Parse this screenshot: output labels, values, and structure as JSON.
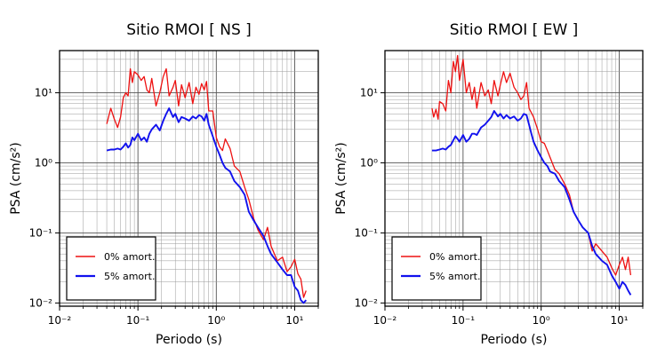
{
  "chart_data": [
    {
      "type": "line",
      "title": "Sitio RMOI [ NS ]",
      "xlabel": "Periodo (s)",
      "ylabel": "PSA (cm/s²)",
      "xscale": "log",
      "yscale": "log",
      "xlim": [
        0.01,
        20
      ],
      "ylim": [
        0.009,
        40
      ],
      "grid": true,
      "legend_position": "bottom-left",
      "x_ticks": [
        "10⁻²",
        "10⁻¹",
        "10⁰",
        "10¹"
      ],
      "y_ticks": [
        "10⁻²",
        "10⁻¹",
        "10⁰",
        "10¹"
      ],
      "series": [
        {
          "name": "0% amort.",
          "color": "#ee1111",
          "x": [
            0.04,
            0.045,
            0.05,
            0.055,
            0.06,
            0.065,
            0.07,
            0.075,
            0.08,
            0.085,
            0.09,
            0.1,
            0.11,
            0.12,
            0.13,
            0.14,
            0.15,
            0.17,
            0.19,
            0.21,
            0.23,
            0.25,
            0.28,
            0.3,
            0.33,
            0.36,
            0.4,
            0.45,
            0.5,
            0.55,
            0.6,
            0.65,
            0.7,
            0.75,
            0.8,
            0.9,
            1.0,
            1.1,
            1.2,
            1.3,
            1.5,
            1.7,
            2.0,
            2.3,
            2.6,
            3.0,
            3.4,
            4.0,
            4.5,
            5.0,
            6.0,
            7.0,
            8.0,
            9.0,
            10.0,
            11.0,
            12.0,
            13.0,
            14.0
          ],
          "y": [
            3.6,
            6.0,
            4.2,
            3.2,
            4.5,
            8.5,
            10.0,
            9.0,
            22.0,
            14.0,
            20.0,
            18.0,
            15.0,
            17.0,
            11.0,
            10.0,
            16.0,
            6.5,
            10.0,
            17.0,
            22.0,
            9.0,
            12.0,
            15.0,
            6.5,
            13.0,
            8.5,
            14.0,
            7.0,
            12.0,
            9.5,
            13.5,
            11.0,
            14.5,
            5.5,
            5.5,
            2.3,
            1.7,
            1.5,
            2.2,
            1.6,
            0.9,
            0.75,
            0.45,
            0.3,
            0.16,
            0.11,
            0.08,
            0.12,
            0.065,
            0.04,
            0.045,
            0.028,
            0.033,
            0.042,
            0.026,
            0.022,
            0.012,
            0.015
          ]
        },
        {
          "name": "5% amort.",
          "color": "#1111ee",
          "x": [
            0.04,
            0.045,
            0.05,
            0.055,
            0.06,
            0.065,
            0.07,
            0.075,
            0.08,
            0.085,
            0.09,
            0.1,
            0.11,
            0.12,
            0.13,
            0.14,
            0.15,
            0.17,
            0.19,
            0.21,
            0.23,
            0.25,
            0.28,
            0.3,
            0.33,
            0.36,
            0.4,
            0.45,
            0.5,
            0.55,
            0.6,
            0.65,
            0.7,
            0.75,
            0.8,
            0.9,
            1.0,
            1.1,
            1.2,
            1.3,
            1.5,
            1.7,
            2.0,
            2.3,
            2.6,
            3.0,
            3.4,
            4.0,
            4.5,
            5.0,
            6.0,
            7.0,
            8.0,
            9.0,
            10.0,
            11.0,
            12.0,
            13.0,
            14.0
          ],
          "y": [
            1.5,
            1.55,
            1.55,
            1.6,
            1.55,
            1.7,
            1.9,
            1.65,
            1.8,
            2.3,
            2.1,
            2.6,
            2.1,
            2.3,
            2.0,
            2.6,
            3.0,
            3.5,
            2.9,
            4.0,
            5.0,
            6.0,
            4.5,
            5.0,
            3.8,
            4.5,
            4.3,
            4.0,
            4.6,
            4.3,
            4.8,
            4.6,
            4.0,
            5.0,
            3.5,
            2.4,
            1.7,
            1.3,
            1.0,
            0.85,
            0.75,
            0.55,
            0.45,
            0.35,
            0.2,
            0.15,
            0.12,
            0.09,
            0.065,
            0.05,
            0.038,
            0.03,
            0.025,
            0.025,
            0.017,
            0.015,
            0.011,
            0.01,
            0.011
          ]
        }
      ]
    },
    {
      "type": "line",
      "title": "Sitio RMOI [ EW ]",
      "xlabel": "Periodo (s)",
      "ylabel": "PSA (cm/s²)",
      "xscale": "log",
      "yscale": "log",
      "xlim": [
        0.01,
        20
      ],
      "ylim": [
        0.009,
        40
      ],
      "grid": true,
      "legend_position": "bottom-left",
      "x_ticks": [
        "10⁻²",
        "10⁻¹",
        "10⁰",
        "10¹"
      ],
      "y_ticks": [
        "10⁻²",
        "10⁻¹",
        "10⁰",
        "10¹"
      ],
      "series": [
        {
          "name": "0% amort.",
          "color": "#ee1111",
          "x": [
            0.04,
            0.042,
            0.045,
            0.048,
            0.05,
            0.055,
            0.06,
            0.065,
            0.07,
            0.075,
            0.08,
            0.085,
            0.09,
            0.1,
            0.11,
            0.12,
            0.13,
            0.14,
            0.15,
            0.17,
            0.19,
            0.21,
            0.23,
            0.25,
            0.28,
            0.3,
            0.33,
            0.36,
            0.4,
            0.45,
            0.5,
            0.55,
            0.6,
            0.65,
            0.7,
            0.8,
            0.9,
            1.0,
            1.1,
            1.2,
            1.3,
            1.5,
            1.7,
            2.0,
            2.3,
            2.6,
            3.0,
            3.4,
            4.0,
            4.5,
            5.0,
            6.0,
            7.0,
            8.0,
            9.0,
            10.0,
            11.0,
            12.0,
            13.0,
            14.0
          ],
          "y": [
            6.0,
            4.5,
            5.8,
            4.2,
            7.5,
            7.0,
            5.5,
            15.0,
            10.0,
            28.0,
            20.0,
            34.0,
            15.0,
            30.0,
            10.0,
            14.0,
            8.0,
            12.0,
            6.0,
            14.0,
            9.0,
            11.0,
            7.0,
            15.0,
            9.0,
            13.0,
            20.0,
            14.0,
            19.0,
            12.0,
            10.0,
            8.0,
            9.0,
            14.0,
            6.0,
            4.5,
            3.0,
            2.0,
            1.9,
            1.5,
            1.2,
            0.8,
            0.7,
            0.5,
            0.35,
            0.2,
            0.15,
            0.12,
            0.1,
            0.055,
            0.07,
            0.055,
            0.045,
            0.032,
            0.025,
            0.035,
            0.045,
            0.03,
            0.045,
            0.025
          ]
        },
        {
          "name": "5% amort.",
          "color": "#1111ee",
          "x": [
            0.04,
            0.045,
            0.05,
            0.055,
            0.06,
            0.065,
            0.07,
            0.075,
            0.08,
            0.085,
            0.09,
            0.1,
            0.11,
            0.12,
            0.13,
            0.14,
            0.15,
            0.17,
            0.19,
            0.21,
            0.23,
            0.25,
            0.28,
            0.3,
            0.33,
            0.36,
            0.4,
            0.45,
            0.5,
            0.55,
            0.6,
            0.65,
            0.7,
            0.75,
            0.8,
            0.9,
            1.0,
            1.1,
            1.2,
            1.3,
            1.5,
            1.7,
            2.0,
            2.3,
            2.6,
            3.0,
            3.4,
            4.0,
            4.5,
            5.0,
            6.0,
            7.0,
            8.0,
            9.0,
            10.0,
            11.0,
            12.0,
            13.0,
            14.0
          ],
          "y": [
            1.5,
            1.5,
            1.55,
            1.6,
            1.55,
            1.7,
            1.8,
            2.1,
            2.4,
            2.2,
            2.0,
            2.5,
            2.0,
            2.2,
            2.6,
            2.6,
            2.5,
            3.2,
            3.5,
            4.0,
            4.5,
            5.5,
            4.6,
            5.0,
            4.3,
            4.8,
            4.3,
            4.6,
            4.0,
            4.3,
            5.0,
            4.8,
            3.5,
            2.6,
            2.0,
            1.5,
            1.2,
            1.0,
            0.9,
            0.75,
            0.7,
            0.55,
            0.45,
            0.3,
            0.2,
            0.15,
            0.12,
            0.1,
            0.065,
            0.05,
            0.04,
            0.035,
            0.025,
            0.02,
            0.016,
            0.02,
            0.018,
            0.015,
            0.013
          ]
        }
      ]
    }
  ]
}
